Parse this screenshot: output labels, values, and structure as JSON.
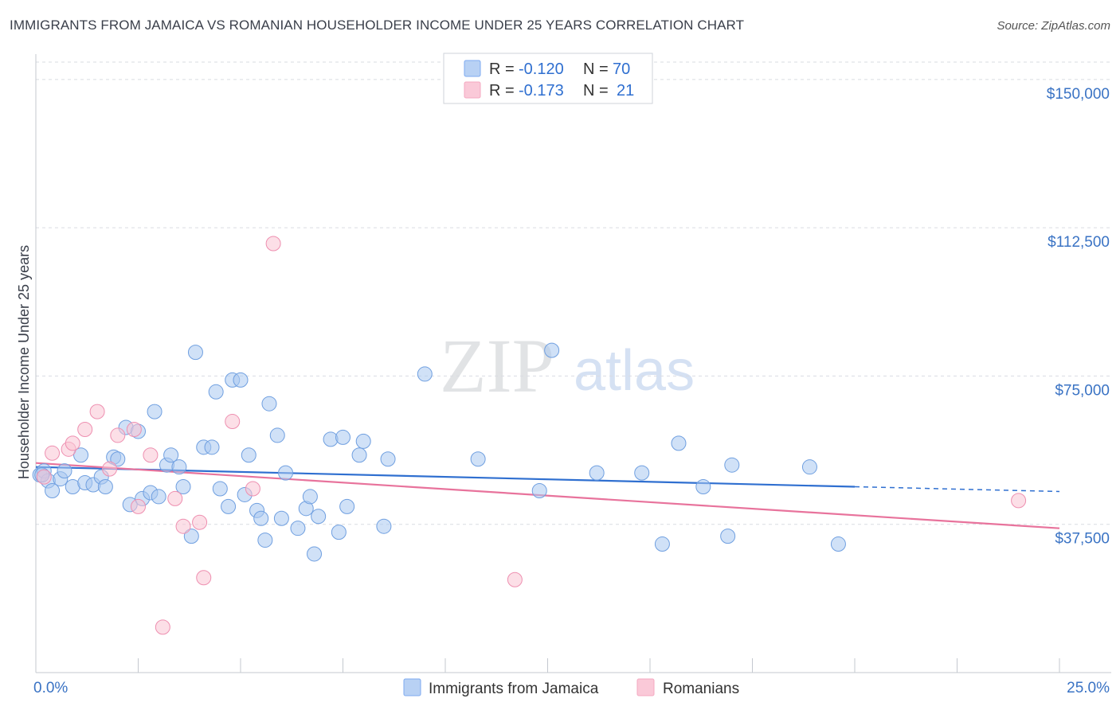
{
  "header": {
    "title": "IMMIGRANTS FROM JAMAICA VS ROMANIAN HOUSEHOLDER INCOME UNDER 25 YEARS CORRELATION CHART",
    "source": "Source: ZipAtlas.com"
  },
  "watermark": {
    "zip": "ZIP",
    "atlas": "atlas"
  },
  "chart_data": {
    "type": "scatter",
    "title": "IMMIGRANTS FROM JAMAICA VS ROMANIAN HOUSEHOLDER INCOME UNDER 25 YEARS CORRELATION CHART",
    "ylabel": "Householder Income Under 25 years",
    "xlim": [
      0,
      25
    ],
    "ylim": [
      0,
      155000
    ],
    "x_tick_labels": [
      {
        "value": 0,
        "label": "0.0%"
      },
      {
        "value": 25,
        "label": "25.0%"
      }
    ],
    "y_tick_labels": [
      {
        "value": 37500,
        "label": "$37,500"
      },
      {
        "value": 75000,
        "label": "$75,000"
      },
      {
        "value": 112500,
        "label": "$112,500"
      },
      {
        "value": 150000,
        "label": "$150,000"
      }
    ],
    "grid": "horizontal-dashed",
    "legend_placement": "top-center",
    "stats": [
      {
        "r_label": "R =",
        "r": "-0.120",
        "n_label": "N =",
        "n": "70",
        "color": "#7eaaf0"
      },
      {
        "r_label": "R =",
        "r": "-0.173",
        "n_label": "N =",
        "n": "21",
        "color": "#f4a8c0"
      }
    ],
    "series": [
      {
        "name": "Immigrants from Jamaica",
        "color": "#a9c8f0",
        "stroke": "#6f9fe0",
        "trend": {
          "x0": 0,
          "y0": 52000,
          "x1": 20,
          "y1": 47000,
          "dash_to": 25,
          "dash_y": 45800,
          "color": "#2f6fd0"
        },
        "points": [
          [
            0.1,
            50000
          ],
          [
            0.2,
            51000
          ],
          [
            0.3,
            48500
          ],
          [
            0.4,
            46000
          ],
          [
            0.6,
            49000
          ],
          [
            0.7,
            51000
          ],
          [
            0.9,
            47000
          ],
          [
            1.1,
            55000
          ],
          [
            1.2,
            48000
          ],
          [
            1.4,
            47500
          ],
          [
            1.6,
            49500
          ],
          [
            1.7,
            47000
          ],
          [
            1.9,
            54500
          ],
          [
            2.0,
            54000
          ],
          [
            2.2,
            62000
          ],
          [
            2.3,
            42500
          ],
          [
            2.5,
            61000
          ],
          [
            2.6,
            44000
          ],
          [
            2.8,
            45500
          ],
          [
            2.9,
            66000
          ],
          [
            3.0,
            44500
          ],
          [
            3.2,
            52500
          ],
          [
            3.3,
            55000
          ],
          [
            3.5,
            52000
          ],
          [
            3.6,
            47000
          ],
          [
            3.8,
            34500
          ],
          [
            3.9,
            81000
          ],
          [
            4.1,
            57000
          ],
          [
            4.3,
            57000
          ],
          [
            4.4,
            71000
          ],
          [
            4.5,
            46500
          ],
          [
            4.7,
            42000
          ],
          [
            4.8,
            74000
          ],
          [
            5.0,
            74000
          ],
          [
            5.1,
            45000
          ],
          [
            5.2,
            55000
          ],
          [
            5.4,
            41000
          ],
          [
            5.5,
            39000
          ],
          [
            5.6,
            33500
          ],
          [
            5.7,
            68000
          ],
          [
            5.9,
            60000
          ],
          [
            6.0,
            39000
          ],
          [
            6.1,
            50500
          ],
          [
            6.4,
            36500
          ],
          [
            6.6,
            41500
          ],
          [
            6.7,
            44500
          ],
          [
            6.8,
            30000
          ],
          [
            6.9,
            39500
          ],
          [
            7.2,
            59000
          ],
          [
            7.4,
            35500
          ],
          [
            7.5,
            59500
          ],
          [
            7.6,
            42000
          ],
          [
            7.9,
            55000
          ],
          [
            8.0,
            58500
          ],
          [
            8.5,
            37000
          ],
          [
            8.6,
            54000
          ],
          [
            9.5,
            75500
          ],
          [
            10.8,
            54000
          ],
          [
            12.3,
            46000
          ],
          [
            12.6,
            81500
          ],
          [
            13.7,
            50500
          ],
          [
            14.8,
            50500
          ],
          [
            15.3,
            32500
          ],
          [
            15.7,
            58000
          ],
          [
            16.3,
            47000
          ],
          [
            16.9,
            34500
          ],
          [
            17.0,
            52500
          ],
          [
            18.9,
            52000
          ],
          [
            19.6,
            32500
          ],
          [
            0.15,
            50000
          ]
        ]
      },
      {
        "name": "Romanians",
        "color": "#f9c4d4",
        "stroke": "#ee8fb0",
        "trend": {
          "x0": 0,
          "y0": 53000,
          "x1": 25,
          "y1": 36500,
          "color": "#e8739c"
        },
        "points": [
          [
            0.2,
            49500
          ],
          [
            0.4,
            55500
          ],
          [
            0.8,
            56500
          ],
          [
            0.9,
            58000
          ],
          [
            1.2,
            61500
          ],
          [
            1.5,
            66000
          ],
          [
            1.8,
            51500
          ],
          [
            2.0,
            60000
          ],
          [
            2.4,
            61500
          ],
          [
            2.5,
            42000
          ],
          [
            2.8,
            55000
          ],
          [
            3.1,
            11500
          ],
          [
            3.4,
            44000
          ],
          [
            3.6,
            37000
          ],
          [
            4.0,
            38000
          ],
          [
            4.1,
            24000
          ],
          [
            4.8,
            63500
          ],
          [
            5.3,
            46500
          ],
          [
            5.8,
            108500
          ],
          [
            11.7,
            23500
          ],
          [
            24.0,
            43500
          ]
        ]
      }
    ]
  },
  "legend": {
    "series1_label": "Immigrants from Jamaica",
    "series2_label": "Romanians"
  }
}
